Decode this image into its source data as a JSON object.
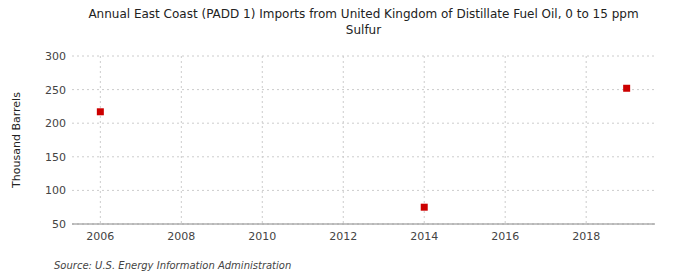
{
  "chart_data": {
    "type": "scatter",
    "title": "Annual East Coast (PADD 1) Imports from United Kingdom of Distillate Fuel Oil, 0 to 15 ppm\nSulfur",
    "y_label": "Thousand Barrels",
    "source": "Source: U.S. Energy Information Administration",
    "x": [
      2006,
      2014,
      2019
    ],
    "values": [
      217,
      75,
      252
    ],
    "color": "#cc0000",
    "marker": "square",
    "xlim": [
      2005.3,
      2019.7
    ],
    "ylim": [
      50,
      300
    ],
    "xticks": [
      2006,
      2008,
      2010,
      2012,
      2014,
      2016,
      2018
    ],
    "yticks": [
      50,
      100,
      150,
      200,
      250,
      300
    ],
    "grid": true
  }
}
